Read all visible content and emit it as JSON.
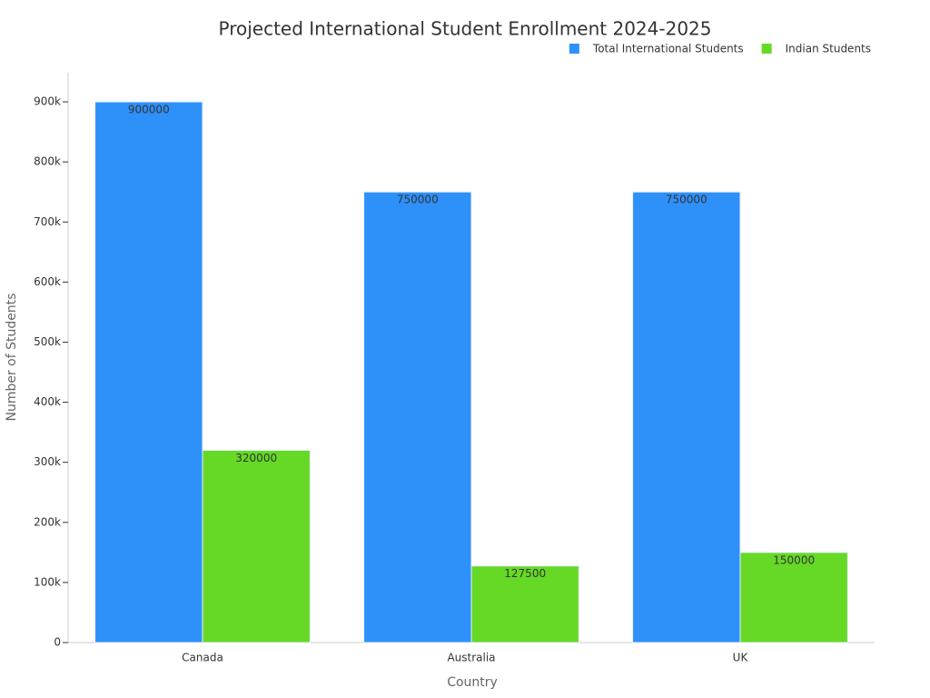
{
  "chart_data": {
    "type": "bar",
    "title": "Projected International Student Enrollment 2024-2025",
    "x_label": "Country",
    "y_label": "Number of Students",
    "categories": [
      "Canada",
      "Australia",
      "UK"
    ],
    "series": [
      {
        "name": "Total International Students",
        "color": "#2e91fa",
        "values": [
          900000,
          750000,
          750000
        ]
      },
      {
        "name": "Indian Students",
        "color": "#66d927",
        "values": [
          320000,
          127500,
          150000
        ]
      }
    ],
    "ylim": [
      0,
      950000
    ],
    "yticks": [
      0,
      {
        "value": 100000,
        "label": "100k"
      },
      {
        "value": 200000,
        "label": "200k"
      },
      {
        "value": 300000,
        "label": "300k"
      },
      {
        "value": 400000,
        "label": "400k"
      },
      {
        "value": 500000,
        "label": "500k"
      },
      {
        "value": 600000,
        "label": "600k"
      },
      {
        "value": 700000,
        "label": "700k"
      },
      {
        "value": 800000,
        "label": "800k"
      },
      {
        "value": 900000,
        "label": "900k"
      }
    ],
    "legend": "top-right",
    "grid": false
  }
}
